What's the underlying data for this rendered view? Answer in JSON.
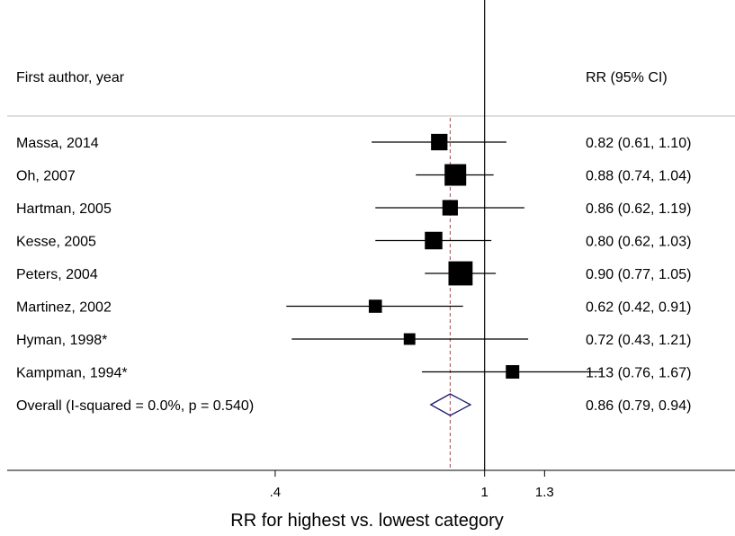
{
  "chart_data": {
    "type": "forest",
    "x_scale": "log",
    "xlim": [
      0.305,
      3.05
    ],
    "reference_value": 1,
    "overall_estimate_line": 0.86,
    "col_headers": {
      "study": "First author, year",
      "effect": "RR (95% CI)"
    },
    "xlabel": "RR for highest vs. lowest category",
    "xticks": [
      {
        "value": 0.4,
        "label": ".4"
      },
      {
        "value": 1,
        "label": "1"
      },
      {
        "value": 1.3,
        "label": "1.3"
      }
    ],
    "studies": [
      {
        "label": "Massa, 2014",
        "rr": 0.82,
        "lo": 0.61,
        "hi": 1.1,
        "ci_text": "0.82 (0.61, 1.10)",
        "weight": 2.2
      },
      {
        "label": "Oh, 2007",
        "rr": 0.88,
        "lo": 0.74,
        "hi": 1.04,
        "ci_text": "0.88 (0.74, 1.04)",
        "weight": 5.0
      },
      {
        "label": "Hartman, 2005",
        "rr": 0.86,
        "lo": 0.62,
        "hi": 1.19,
        "ci_text": "0.86 (0.62, 1.19)",
        "weight": 1.8
      },
      {
        "label": "Kesse, 2005",
        "rr": 0.8,
        "lo": 0.62,
        "hi": 1.03,
        "ci_text": "0.80 (0.62, 1.03)",
        "weight": 2.7
      },
      {
        "label": "Peters, 2004",
        "rr": 0.9,
        "lo": 0.77,
        "hi": 1.05,
        "ci_text": "0.90 (0.77, 1.05)",
        "weight": 6.8
      },
      {
        "label": "Martinez, 2002",
        "rr": 0.62,
        "lo": 0.42,
        "hi": 0.91,
        "ci_text": "0.62 (0.42, 0.91)",
        "weight": 1.0
      },
      {
        "label": "Hyman, 1998*",
        "rr": 0.72,
        "lo": 0.43,
        "hi": 1.21,
        "ci_text": "0.72 (0.43, 1.21)",
        "weight": 0.6
      },
      {
        "label": "Kampman, 1994*",
        "rr": 1.13,
        "lo": 0.76,
        "hi": 1.67,
        "ci_text": "1.13 (0.76, 1.67)",
        "weight": 1.1
      }
    ],
    "overall": {
      "label": "Overall  (I-squared = 0.0%, p = 0.540)",
      "rr": 0.86,
      "lo": 0.79,
      "hi": 0.94,
      "ci_text": "0.86 (0.79, 0.94)"
    },
    "colors": {
      "marker": "#000000",
      "diamond": "#1a1a6e",
      "estimate_line": "#a04a4a",
      "header_rule": "#bdbdbd"
    }
  }
}
